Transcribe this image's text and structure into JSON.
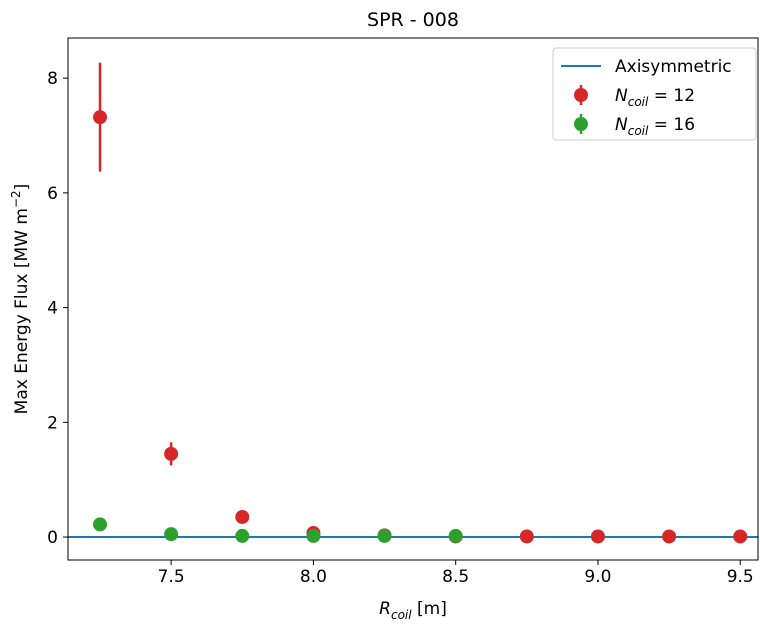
{
  "chart_data": {
    "type": "scatter",
    "title": "SPR - 008",
    "xlabel": [
      "R",
      "coil",
      " [m]"
    ],
    "ylabel": [
      "Max Energy Flux [MW m",
      "−2",
      "]"
    ],
    "xlim": [
      7.1375,
      9.5625
    ],
    "ylim": [
      -0.4,
      8.7
    ],
    "xticks": [
      7.5,
      {
        "value": 8,
        "label": "8.0"
      },
      8.5,
      {
        "value": 9,
        "label": "9.0"
      },
      9.5
    ],
    "yticks": [
      0,
      2,
      4,
      6,
      8
    ],
    "legend": "upper right",
    "series": [
      {
        "name": [
          "Axisymmetric"
        ],
        "kind": "hline",
        "color": "#1f77b4",
        "value": 0
      },
      {
        "name": [
          "N",
          "coil",
          " = 12"
        ],
        "kind": "errorbar",
        "color": "#d62728",
        "x": [
          7.25,
          7.5,
          7.75,
          8,
          8.25,
          8.5,
          8.75,
          9,
          9.25,
          9.5
        ],
        "values": [
          7.32,
          1.45,
          0.35,
          0.07,
          0.03,
          0.01,
          0.01,
          0.01,
          0.01,
          0.01
        ],
        "errors": [
          0.95,
          0.2,
          0,
          0,
          0,
          0,
          0,
          0,
          0,
          0
        ]
      },
      {
        "name": [
          "N",
          "coil",
          " = 16"
        ],
        "kind": "errorbar",
        "color": "#2ca02c",
        "x": [
          7.25,
          7.5,
          7.75,
          8,
          8.25,
          8.5
        ],
        "values": [
          0.22,
          0.05,
          0.02,
          0.02,
          0.02,
          0.02
        ]
      }
    ]
  }
}
